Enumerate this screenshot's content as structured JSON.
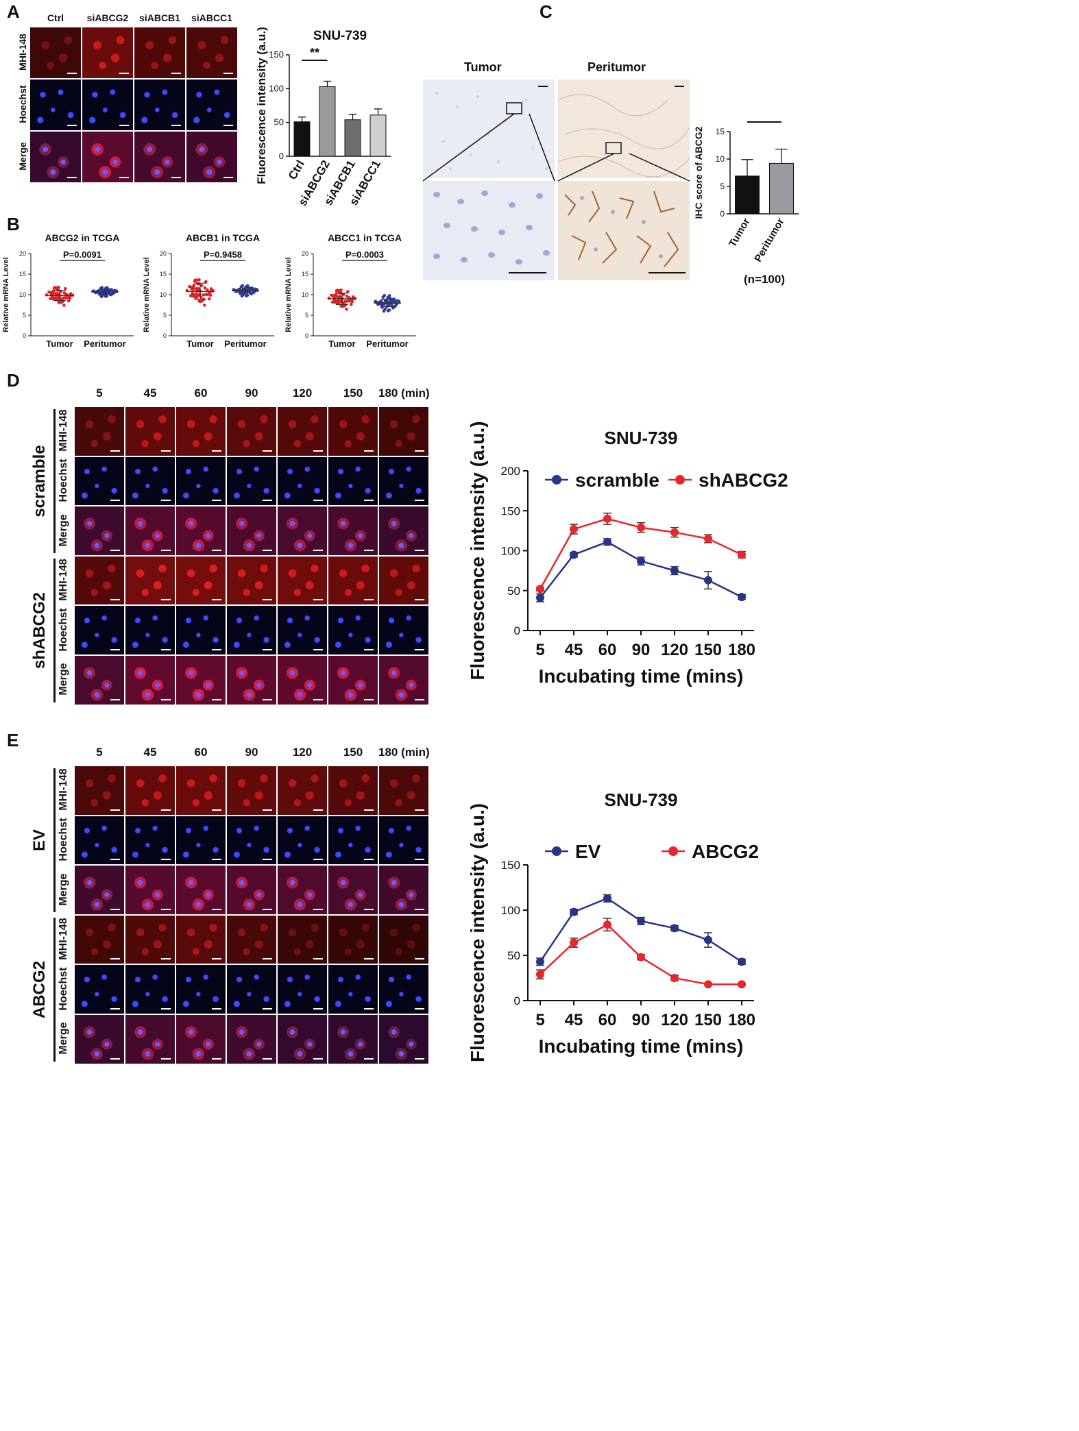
{
  "panel_letters": {
    "a": "A",
    "b": "B",
    "c": "C",
    "d": "D",
    "e": "E"
  },
  "panelA": {
    "col_labels": [
      "Ctrl",
      "siABCG2",
      "siABCB1",
      "siABCC1"
    ],
    "row_labels": [
      "MHI-148",
      "Hoechst",
      "Merge"
    ],
    "red_intensity": [
      0.35,
      0.85,
      0.55,
      0.5
    ]
  },
  "panelD": {
    "col_labels": [
      "5",
      "45",
      "60",
      "90",
      "120",
      "150",
      "180 (min)"
    ],
    "row_labels": [
      "MHI-148",
      "Hoechst",
      "Merge",
      "MHI-148",
      "Hoechst",
      "Merge"
    ],
    "group_labels": [
      "scramble",
      "shABCG2"
    ],
    "red_intensity": [
      [
        0.45,
        0.75,
        0.8,
        0.65,
        0.6,
        0.55,
        0.4
      ],
      [
        0.6,
        0.95,
        0.95,
        0.9,
        0.9,
        0.85,
        0.75
      ]
    ]
  },
  "panelE": {
    "col_labels": [
      "5",
      "45",
      "60",
      "90",
      "120",
      "150",
      "180 (min)"
    ],
    "row_labels": [
      "MHI-148",
      "Hoechst",
      "Merge",
      "MHI-148",
      "Hoechst",
      "Merge"
    ],
    "group_labels": [
      "EV",
      "ABCG2"
    ],
    "red_intensity": [
      [
        0.5,
        0.8,
        0.85,
        0.75,
        0.7,
        0.6,
        0.5
      ],
      [
        0.4,
        0.55,
        0.65,
        0.45,
        0.3,
        0.25,
        0.2
      ]
    ]
  },
  "panelC": {
    "col_labels": [
      "Tumor",
      "Peritumor"
    ]
  },
  "chart_data": [
    {
      "id": "A",
      "type": "bar",
      "title": "SNU-739",
      "ylabel": "Fluorescence intensity (a.u.)",
      "categories": [
        "Ctrl",
        "siABCG2",
        "siABCB1",
        "siABCC1"
      ],
      "values": [
        51,
        103,
        54,
        61
      ],
      "errors": [
        7,
        8,
        8,
        9
      ],
      "colors": [
        "#111111",
        "#9a9a9a",
        "#6f6f6f",
        "#cfcfcf"
      ],
      "ylim": [
        0,
        150
      ],
      "yticks": [
        "0",
        "50",
        "100",
        "150"
      ],
      "significance": {
        "label": "**",
        "between": [
          "Ctrl",
          "siABCG2"
        ]
      }
    },
    {
      "id": "B1",
      "type": "scatter",
      "title": "ABCG2 in TCGA",
      "ylabel": "Relative mRNA Level",
      "categories": [
        "Tumor",
        "Peritumor"
      ],
      "means": [
        9.8,
        10.7
      ],
      "sd": [
        1.2,
        0.5
      ],
      "spread": [
        1.7,
        0.7
      ],
      "n_points": [
        50,
        50
      ],
      "ylim": [
        0,
        20
      ],
      "yticks": [
        "0",
        "5",
        "10",
        "15",
        "20"
      ],
      "pvalue": "P=0.0091"
    },
    {
      "id": "B2",
      "type": "scatter",
      "title": "ABCB1 in TCGA",
      "ylabel": "Relative mRNA Level",
      "categories": [
        "Tumor",
        "Peritumor"
      ],
      "means": [
        10.8,
        11.0
      ],
      "sd": [
        2.0,
        0.6
      ],
      "spread": [
        2.4,
        0.8
      ],
      "n_points": [
        50,
        50
      ],
      "ylim": [
        0,
        20
      ],
      "yticks": [
        "0",
        "5",
        "10",
        "15",
        "20"
      ],
      "pvalue": "P=0.9458"
    },
    {
      "id": "B3",
      "type": "scatter",
      "title": "ABCC1 in TCGA",
      "ylabel": "Relative mRNA Level",
      "categories": [
        "Tumor",
        "Peritumor"
      ],
      "means": [
        9.0,
        8.0
      ],
      "sd": [
        1.4,
        0.9
      ],
      "spread": [
        1.8,
        1.2
      ],
      "n_points": [
        50,
        50
      ],
      "ylim": [
        0,
        20
      ],
      "yticks": [
        "0",
        "5",
        "10",
        "15",
        "20"
      ],
      "pvalue": "P=0.0003"
    },
    {
      "id": "C",
      "type": "bar",
      "ylabel": "IHC score of ABCG2",
      "categories": [
        "Tumor",
        "Peritumor"
      ],
      "values": [
        6.9,
        9.2
      ],
      "errors": [
        3.0,
        2.6
      ],
      "colors": [
        "#111111",
        "#9a9aa0"
      ],
      "ylim": [
        0,
        15
      ],
      "yticks": [
        "0",
        "5",
        "10",
        "15"
      ],
      "significance": {
        "label": "***",
        "between": [
          "Tumor",
          "Peritumor"
        ]
      },
      "note": "(n=100)"
    },
    {
      "id": "D",
      "type": "line",
      "title": "SNU-739",
      "xlabel": "Incubating time (mins)",
      "ylabel": "Fluorescence intensity (a.u.)",
      "x": [
        "5",
        "45",
        "60",
        "90",
        "120",
        "150",
        "180"
      ],
      "ylim": [
        0,
        200
      ],
      "yticks": [
        "0",
        "50",
        "100",
        "150",
        "200"
      ],
      "series": [
        {
          "name": "scramble",
          "color": "#27348b",
          "values": [
            41,
            95,
            111,
            87,
            75,
            63,
            42
          ],
          "errors": [
            5,
            3,
            4,
            5,
            5,
            11,
            3
          ]
        },
        {
          "name": "shABCG2",
          "color": "#e8262b",
          "values": [
            52,
            127,
            140,
            129,
            123,
            115,
            95
          ],
          "errors": [
            2,
            6,
            7,
            6,
            6,
            5,
            4
          ]
        }
      ]
    },
    {
      "id": "E",
      "type": "line",
      "title": "SNU-739",
      "xlabel": "Incubating time (mins)",
      "ylabel": "Fluorescence intensity (a.u.)",
      "x": [
        "5",
        "45",
        "60",
        "90",
        "120",
        "150",
        "180"
      ],
      "ylim": [
        0,
        150
      ],
      "yticks": [
        "0",
        "50",
        "100",
        "150"
      ],
      "series": [
        {
          "name": "EV",
          "color": "#27348b",
          "values": [
            43,
            98,
            113,
            88,
            80,
            67,
            43
          ],
          "errors": [
            4,
            3,
            4,
            4,
            3,
            8,
            3
          ]
        },
        {
          "name": "ABCG2",
          "color": "#e8262b",
          "values": [
            29,
            64,
            84,
            48,
            25,
            18,
            18
          ],
          "errors": [
            5,
            5,
            7,
            3,
            3,
            1,
            1
          ]
        }
      ]
    }
  ]
}
